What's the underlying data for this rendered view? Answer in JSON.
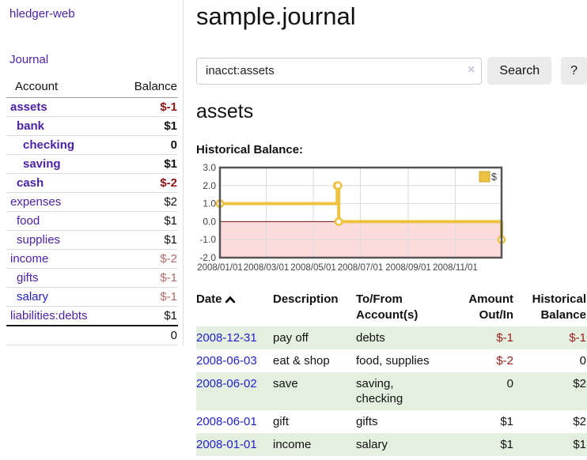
{
  "app": {
    "title": "hledger-web",
    "nav_journal": "Journal"
  },
  "colors": {
    "link_purple": "#4b22a8",
    "link_blue": "#2222cc",
    "negative_bold_red": "#8b1515",
    "negative_red": "#9a1c1c",
    "negative_soft_red": "#b26969",
    "text_black": "#111111",
    "zebra_green": "#e4efdf",
    "series_gold": "#edc240",
    "negative_area_pink": "#fbdbdb",
    "zero_line_dark_red": "#7d0f0f"
  },
  "sidebar": {
    "header": {
      "account": "Account",
      "balance": "Balance"
    },
    "accounts": [
      {
        "name": "assets",
        "depth": 0,
        "bold": true,
        "name_color": "#4b22a8",
        "balance": "$-1",
        "balance_color": "#8b1515"
      },
      {
        "name": "bank",
        "depth": 1,
        "bold": true,
        "name_color": "#4b22a8",
        "balance": "$1",
        "balance_color": "#111111"
      },
      {
        "name": "checking",
        "depth": 2,
        "bold": true,
        "name_color": "#4b22a8",
        "balance": "0",
        "balance_color": "#111111"
      },
      {
        "name": "saving",
        "depth": 2,
        "bold": true,
        "name_color": "#4b22a8",
        "balance": "$1",
        "balance_color": "#111111"
      },
      {
        "name": "cash",
        "depth": 1,
        "bold": true,
        "name_color": "#4b22a8",
        "balance": "$-2",
        "balance_color": "#8b1515"
      },
      {
        "name": "expenses",
        "depth": 0,
        "bold": false,
        "name_color": "#4b22a8",
        "balance": "$2",
        "balance_color": "#111111"
      },
      {
        "name": "food",
        "depth": 1,
        "bold": false,
        "name_color": "#4b22a8",
        "balance": "$1",
        "balance_color": "#111111"
      },
      {
        "name": "supplies",
        "depth": 1,
        "bold": false,
        "name_color": "#4b22a8",
        "balance": "$1",
        "balance_color": "#111111"
      },
      {
        "name": "income",
        "depth": 0,
        "bold": false,
        "name_color": "#4b22a8",
        "balance": "$-2",
        "balance_color": "#b26969"
      },
      {
        "name": "gifts",
        "depth": 1,
        "bold": false,
        "name_color": "#4b22a8",
        "balance": "$-1",
        "balance_color": "#b26969"
      },
      {
        "name": "salary",
        "depth": 1,
        "bold": false,
        "name_color": "#2222cc",
        "balance": "$-1",
        "balance_color": "#b26969"
      },
      {
        "name": "liabilities:debts",
        "depth": 0,
        "bold": false,
        "name_color": "#4b22a8",
        "balance": "$1",
        "balance_color": "#111111"
      }
    ],
    "total": "0"
  },
  "main": {
    "title": "sample.journal",
    "search": {
      "value": "inacct:assets",
      "clear_icon": "×",
      "button_label": "Search",
      "help_label": "?"
    },
    "account_heading": "assets",
    "chart_label": "Historical Balance:"
  },
  "chart_data": {
    "type": "line",
    "step": true,
    "title": "Historical Balance",
    "x_range": [
      "2008-01-01",
      "2008-12-31"
    ],
    "ylim": [
      -2,
      3
    ],
    "y_ticks": [
      "3.0",
      "2.0",
      "1.0",
      "0.0",
      "-1.0",
      "-2.0"
    ],
    "x_ticks": [
      "2008/01/01",
      "2008/03/01",
      "2008/05/01",
      "2008/07/01",
      "2008/09/01",
      "2008/11/01"
    ],
    "grid": true,
    "legend": {
      "label": "$",
      "position": "top-right"
    },
    "series": [
      {
        "name": "$",
        "color": "#edc240",
        "points": [
          [
            "2008-01-01",
            1
          ],
          [
            "2008-06-01",
            2
          ],
          [
            "2008-06-02",
            2
          ],
          [
            "2008-06-03",
            0
          ],
          [
            "2008-12-31",
            -1
          ]
        ]
      }
    ],
    "negative_fill": "#fbdbdb",
    "zero_line_color": "#7d0f0f",
    "grid_color": "#dcdcdc",
    "border_color": "#545454"
  },
  "register": {
    "headers": {
      "date": "Date",
      "description": "Description",
      "accounts": "To/From Account(s)",
      "amount": "Amount Out/In",
      "balance": "Historical Balance"
    },
    "rows": [
      {
        "date": "2008-12-31",
        "description": "pay off",
        "accounts": "debts",
        "amount": "$-1",
        "amount_color": "#9a1c1c",
        "balance": "$-1",
        "balance_color": "#9a1c1c"
      },
      {
        "date": "2008-06-03",
        "description": "eat & shop",
        "accounts": "food, supplies",
        "amount": "$-2",
        "amount_color": "#9a1c1c",
        "balance": "0",
        "balance_color": "#111111"
      },
      {
        "date": "2008-06-02",
        "description": "save",
        "accounts": "saving, checking",
        "amount": "0",
        "amount_color": "#111111",
        "balance": "$2",
        "balance_color": "#111111"
      },
      {
        "date": "2008-06-01",
        "description": "gift",
        "accounts": "gifts",
        "amount": "$1",
        "amount_color": "#111111",
        "balance": "$2",
        "balance_color": "#111111"
      },
      {
        "date": "2008-01-01",
        "description": "income",
        "accounts": "salary",
        "amount": "$1",
        "amount_color": "#111111",
        "balance": "$1",
        "balance_color": "#111111"
      }
    ]
  }
}
